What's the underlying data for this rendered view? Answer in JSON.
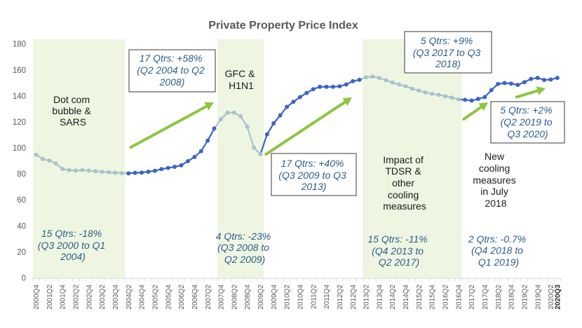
{
  "chart_data": {
    "type": "line",
    "title": "Private Property Price Index",
    "xlabel": "",
    "ylabel": "",
    "ylim": [
      0,
      180
    ],
    "y_ticks": [
      0,
      20,
      40,
      60,
      80,
      100,
      120,
      140,
      160,
      180
    ],
    "grid": false,
    "legend": "none",
    "x": [
      "2000Q4",
      "2001Q1",
      "2001Q2",
      "2001Q3",
      "2001Q4",
      "2002Q1",
      "2002Q2",
      "2002Q3",
      "2002Q4",
      "2003Q1",
      "2003Q2",
      "2003Q3",
      "2003Q4",
      "2004Q1",
      "2004Q2",
      "2004Q3",
      "2004Q4",
      "2005Q1",
      "2005Q2",
      "2005Q3",
      "2005Q4",
      "2006Q1",
      "2006Q2",
      "2006Q3",
      "2006Q4",
      "2007Q1",
      "2007Q2",
      "2007Q3",
      "2007Q4",
      "2008Q1",
      "2008Q2",
      "2008Q3",
      "2008Q4",
      "2009Q1",
      "2009Q2",
      "2009Q3",
      "2009Q4",
      "2010Q1",
      "2010Q2",
      "2010Q3",
      "2010Q4",
      "2011Q1",
      "2011Q2",
      "2011Q3",
      "2011Q4",
      "2012Q1",
      "2012Q2",
      "2012Q3",
      "2012Q4",
      "2013Q1",
      "2013Q2",
      "2013Q3",
      "2013Q4",
      "2014Q1",
      "2014Q2",
      "2014Q3",
      "2014Q4",
      "2015Q1",
      "2015Q2",
      "2015Q3",
      "2015Q4",
      "2016Q1",
      "2016Q2",
      "2016Q3",
      "2016Q4",
      "2017Q1",
      "2017Q2",
      "2017Q3",
      "2017Q4",
      "2018Q1",
      "2018Q2",
      "2018Q3",
      "2018Q4",
      "2019Q1",
      "2019Q2",
      "2019Q3",
      "2019Q4",
      "2020Q1",
      "2020Q2",
      "2020Q3"
    ],
    "x_tick_labels": [
      "2000Q4",
      "2001Q2",
      "2001Q4",
      "2002Q2",
      "2002Q4",
      "2003Q2",
      "2003Q4",
      "2004Q2",
      "2004Q4",
      "2005Q2",
      "2005Q4",
      "2006Q2",
      "2006Q4",
      "2007Q2",
      "2007Q4",
      "2008Q2",
      "2008Q4",
      "2009Q2",
      "2009Q4",
      "2010Q2",
      "2010Q4",
      "2011Q2",
      "2011Q4",
      "2012Q2",
      "2012Q4",
      "2013Q2",
      "2013Q4",
      "2014Q2",
      "2014Q4",
      "2015Q2",
      "2015Q4",
      "2016Q2",
      "2016Q4",
      "2017Q2",
      "2017Q4",
      "2018Q2",
      "2018Q4",
      "2019Q2",
      "2019Q4",
      "2020Q2",
      "2020Q3"
    ],
    "x_tick_label_emphasis": "2020Q3",
    "series": [
      {
        "name": "Private Property Price Index",
        "values": [
          94.8,
          91.5,
          90.3,
          88.0,
          83.8,
          82.9,
          82.5,
          82.9,
          82.5,
          82.0,
          81.6,
          81.3,
          80.9,
          80.7,
          80.4,
          80.8,
          81.0,
          81.7,
          82.4,
          83.7,
          84.6,
          85.5,
          86.6,
          89.8,
          93.0,
          97.5,
          105.6,
          114.9,
          122.1,
          127.1,
          127.1,
          124.3,
          116.3,
          100.2,
          95.2,
          110.4,
          118.9,
          125.1,
          131.6,
          135.5,
          139.1,
          142.3,
          145.2,
          147.0,
          147.0,
          147.0,
          147.4,
          148.8,
          151.3,
          152.4,
          154.4,
          154.9,
          153.9,
          152.1,
          150.3,
          148.8,
          147.4,
          145.6,
          144.1,
          142.7,
          141.6,
          140.9,
          139.8,
          138.7,
          137.3,
          137.0,
          136.4,
          137.7,
          139.1,
          144.5,
          149.2,
          149.9,
          149.5,
          148.5,
          150.6,
          153.1,
          153.9,
          152.3,
          152.6,
          153.9
        ]
      }
    ],
    "highlighted_line_periods": [
      {
        "from": "2004Q2",
        "to": "2007Q3"
      },
      {
        "from": "2009Q2",
        "to": "2013Q1"
      },
      {
        "from": "2016Q4",
        "to": "2020Q3"
      }
    ],
    "highlighted_point_periods": [
      {
        "from": "2004Q2",
        "to": "2007Q3"
      },
      {
        "from": "2009Q3",
        "to": "2013Q1"
      },
      {
        "from": "2017Q1",
        "to": "2020Q3"
      }
    ],
    "shaded_periods": [
      {
        "name": "Dot com bubble & SARS",
        "from": "2000Q4",
        "to": "2004Q1"
      },
      {
        "name": "GFC & H1N1",
        "from": "2007Q4",
        "to": "2009Q2"
      },
      {
        "name": "Impact of TDSR & other cooling measures",
        "from": "2013Q2",
        "to": "2016Q4"
      }
    ],
    "colors": {
      "highlight": "#3b64c4",
      "muted": "#a8c2cd",
      "shade": "#eef6e2",
      "arrow": "#8cc63f",
      "axis": "#d9d9d9"
    }
  },
  "annotations": {
    "events": [
      {
        "lines": [
          "Dot com",
          "bubble &",
          "SARS"
        ]
      },
      {
        "lines": [
          "GFC &",
          "H1N1"
        ]
      },
      {
        "lines": [
          "Impact of",
          "TDSR &",
          "other",
          "cooling",
          "measures"
        ]
      },
      {
        "lines": [
          "New",
          "cooling",
          "measures",
          "in July",
          "2018"
        ]
      }
    ],
    "changes": [
      {
        "lines": [
          "17 Qtrs: +58%",
          "(Q2 2004 to Q2",
          "2008)"
        ]
      },
      {
        "lines": [
          "17 Qtrs: +40%",
          "(Q3 2009 to Q3",
          "2013)"
        ]
      },
      {
        "lines": [
          "5 Qtrs: +9%",
          "(Q3 2017 to Q3",
          "2018)"
        ]
      },
      {
        "lines": [
          "5 Qtrs: +2%",
          "(Q2 2019 to",
          "Q3 2020)"
        ]
      },
      {
        "lines": [
          "15 Qtrs: -18%",
          "(Q3 2000 to Q1",
          "2004)"
        ]
      },
      {
        "lines": [
          "4 Qtrs: -23%",
          "(Q3 2008 to",
          "Q2 2009)"
        ]
      },
      {
        "lines": [
          "15 Qtrs: -11%",
          "(Q4 2013 to",
          "Q2 2017)"
        ]
      },
      {
        "lines": [
          "2 Qtrs: -0.7%",
          "(Q4 2018 to",
          "Q1 2019)"
        ]
      }
    ]
  }
}
